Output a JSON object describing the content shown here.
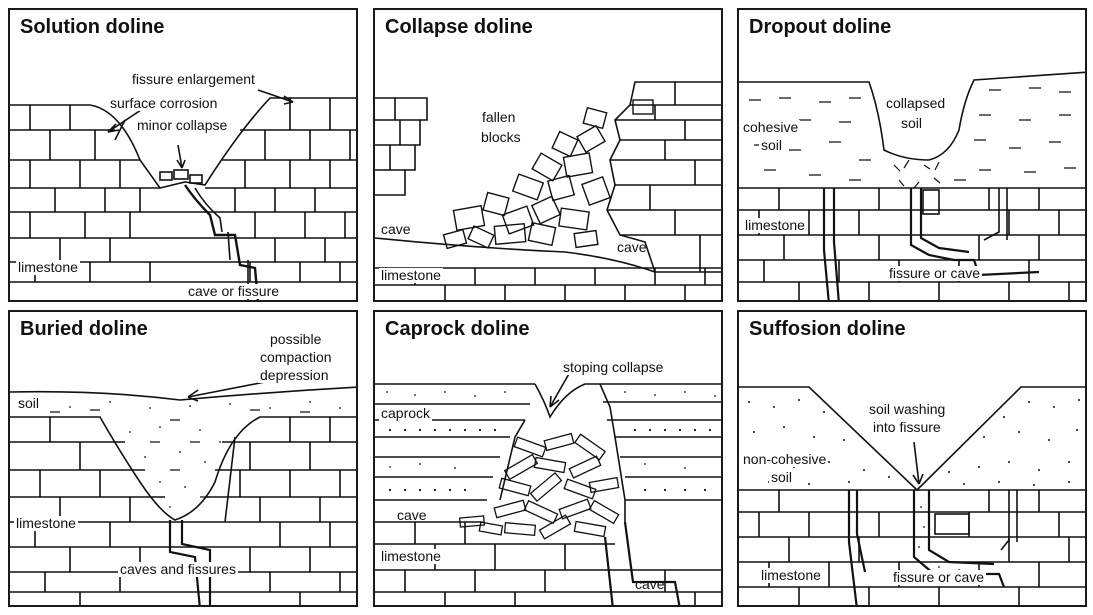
{
  "panels": {
    "solution": {
      "title": "Solution doline",
      "labels": {
        "fissure_enlargement": "fissure enlargement",
        "surface_corrosion": "surface corrosion",
        "minor_collapse": "minor collapse",
        "limestone": "limestone",
        "cave_or_fissure": "cave or fissure"
      }
    },
    "collapse": {
      "title": "Collapse doline",
      "labels": {
        "fallen": "fallen",
        "blocks": "blocks",
        "cave_left": "cave",
        "cave_right": "cave",
        "limestone": "limestone"
      }
    },
    "dropout": {
      "title": "Dropout doline",
      "labels": {
        "cohesive": "cohesive",
        "soil": "soil",
        "collapsed": "collapsed",
        "collapsed_soil": "soil",
        "limestone": "limestone",
        "fissure_or_cave": "fissure or cave"
      }
    },
    "buried": {
      "title": "Buried doline",
      "labels": {
        "possible": "possible",
        "compaction": "compaction",
        "depression": "depression",
        "soil": "soil",
        "limestone": "limestone",
        "caves_and_fissures": "caves and fissures"
      }
    },
    "caprock": {
      "title": "Caprock doline",
      "labels": {
        "stoping_collapse": "stoping collapse",
        "caprock": "caprock",
        "cave_left": "cave",
        "limestone": "limestone",
        "cave_bottom": "cave"
      }
    },
    "suffosion": {
      "title": "Suffosion doline",
      "labels": {
        "soil_washing": "soil washing",
        "into_fissure": "into fissure",
        "non_cohesive": "non-cohesive",
        "soil": "soil",
        "limestone": "limestone",
        "fissure_or_cave": "fissure or cave"
      }
    }
  }
}
